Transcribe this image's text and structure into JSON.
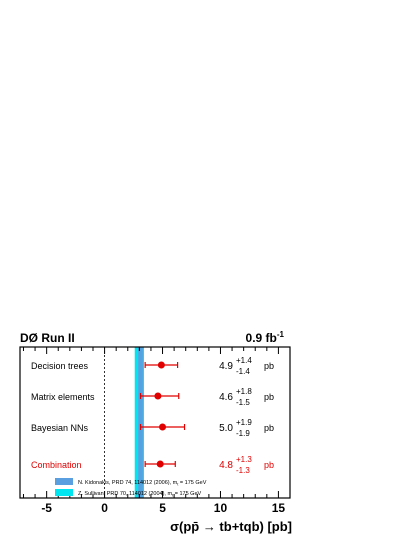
{
  "chart_data": {
    "type": "scatter",
    "experiment_label": "DØ Run II",
    "luminosity": {
      "value": "0.9 fb",
      "sup": "-1"
    },
    "xlabel": "σ(pp̄ → tb+tqb) [pb]",
    "xlim": [
      -7.3,
      16
    ],
    "xticks": [
      -5,
      0,
      5,
      10,
      15
    ],
    "unit": "pb",
    "series": [
      {
        "label": "Decision trees",
        "value": 4.9,
        "err_plus": 1.4,
        "err_minus": 1.4,
        "value_text": "4.9",
        "plus_text": "+1.4",
        "minus_text": "-1.4",
        "color": "#000000",
        "marker": "#e00000"
      },
      {
        "label": "Matrix elements",
        "value": 4.6,
        "err_plus": 1.8,
        "err_minus": 1.5,
        "value_text": "4.6",
        "plus_text": "+1.8",
        "minus_text": "-1.5",
        "color": "#000000",
        "marker": "#e00000"
      },
      {
        "label": "Bayesian NNs",
        "value": 5.0,
        "err_plus": 1.9,
        "err_minus": 1.9,
        "value_text": "5.0",
        "plus_text": "+1.9",
        "minus_text": "-1.9",
        "color": "#000000",
        "marker": "#e00000"
      },
      {
        "label": "Combination",
        "value": 4.8,
        "err_plus": 1.3,
        "err_minus": 1.3,
        "value_text": "4.8",
        "plus_text": "+1.3",
        "minus_text": "-1.3",
        "color": "#e00000",
        "marker": "#e00000"
      }
    ],
    "theory_bands": [
      {
        "label": "N. Kidonakis, PRD 74, 114012 (2006), m",
        "subscript": "t",
        "suffix": " = 175 GeV",
        "low": 2.9,
        "high": 3.3,
        "color": "#5aa0e0"
      },
      {
        "label": "Z. Sullivan, PRD 70, 114012 (2004), m",
        "subscript": "t",
        "suffix": " = 175 GeV",
        "low": 2.6,
        "high": 3.4,
        "color": "#00e5f0"
      }
    ],
    "zero_line": true
  }
}
